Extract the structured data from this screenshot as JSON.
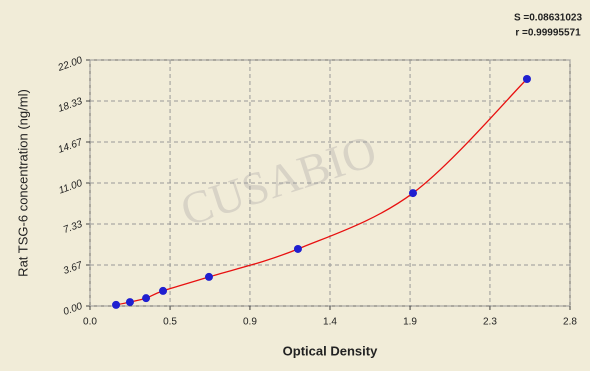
{
  "chart_data": {
    "type": "scatter",
    "stats": [
      "S =0.08631023",
      "r =0.99995571"
    ],
    "watermark": "CUSABIO",
    "x_label": "Optical Density",
    "y_label": "Rat TSG-6 concentration (ng/ml)",
    "x": [
      0.152,
      0.233,
      0.327,
      0.426,
      0.694,
      1.213,
      1.884,
      2.549
    ],
    "series": [
      {
        "color": "#1f1fd0",
        "line_color": "#e81010",
        "values": [
          0.1,
          0.35,
          0.7,
          1.35,
          2.6,
          5.1,
          10.1,
          20.3
        ]
      }
    ],
    "xlim": [
      0,
      2.8
    ],
    "xticks": [
      {
        "value": 0,
        "label": "0.0"
      },
      {
        "value": 0.467,
        "label": "0.5"
      },
      {
        "value": 0.933,
        "label": "0.9"
      },
      {
        "value": 1.4,
        "label": "1.4"
      },
      {
        "value": 1.867,
        "label": "1.9"
      },
      {
        "value": 2.333,
        "label": "2.3"
      },
      {
        "value": 2.8,
        "label": "2.8"
      }
    ],
    "ylim": [
      0,
      22
    ],
    "yticks": [
      {
        "value": 0,
        "label": "0.00"
      },
      {
        "value": 3.667,
        "label": "3.67"
      },
      {
        "value": 7.333,
        "label": "7.33"
      },
      {
        "value": 11,
        "label": "11.00"
      },
      {
        "value": 14.667,
        "label": "14.67"
      },
      {
        "value": 18.333,
        "label": "18.33"
      },
      {
        "value": 22,
        "label": "22.00"
      }
    ],
    "grid": true
  }
}
